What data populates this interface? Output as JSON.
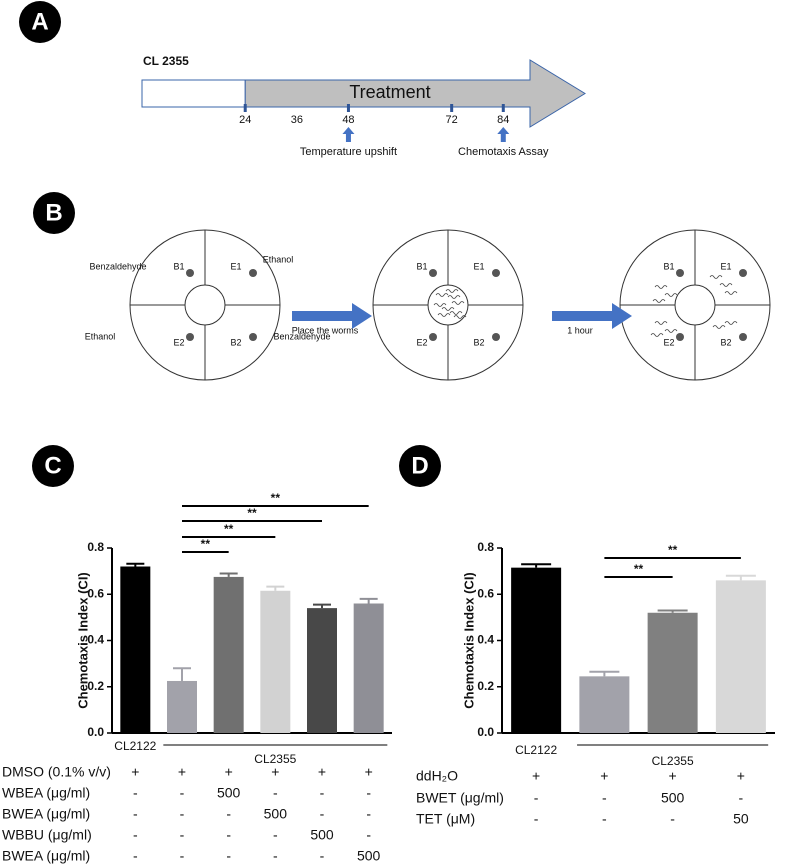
{
  "panels": [
    "A",
    "B",
    "C",
    "D"
  ],
  "timeline": {
    "strain": "CL 2355",
    "label": "Treatment",
    "xlim": [
      0,
      103
    ],
    "xticks": [
      24,
      36,
      48,
      72,
      84
    ],
    "annotations": [
      {
        "at": 48,
        "label": "Temperature upshift"
      },
      {
        "at": 84,
        "label": "Chemotaxis Assay"
      }
    ]
  },
  "assay": {
    "spots": [
      "B1",
      "E1",
      "E2",
      "B2"
    ],
    "odorants": [
      "Benzaldehyde",
      "Ethanol",
      "Ethanol",
      "Benzaldehyde"
    ],
    "steps": [
      "Place the worms",
      "1 hour"
    ]
  },
  "chart_data": [
    {
      "type": "bar",
      "y_label": "Chemotaxis Index (CI)",
      "categories": [
        null,
        null,
        null,
        null,
        null,
        null
      ],
      "values": [
        0.72,
        0.225,
        0.675,
        0.615,
        0.54,
        0.56
      ],
      "errors": [
        0.012,
        0.055,
        0.015,
        0.018,
        0.015,
        0.02
      ],
      "colors": [
        "#000000",
        "#a2a2aa",
        "#707070",
        "#d2d2d2",
        "#484848",
        "#8f8f96"
      ],
      "ylim": [
        0,
        0.8
      ],
      "yticks": [
        {
          "value": 0,
          "label": "0.0"
        },
        0.2,
        0.4,
        0.6,
        0.8
      ],
      "groups": [
        {
          "label": "CL2122",
          "categories": [
            0,
            0
          ]
        },
        {
          "label": "CL2355",
          "categories": [
            1,
            5
          ]
        }
      ],
      "comparisons": [
        {
          "from": 1,
          "to": 2,
          "label": "**"
        },
        {
          "from": 1,
          "to": 3,
          "label": "**"
        },
        {
          "from": 1,
          "to": 4,
          "label": "**"
        },
        {
          "from": 1,
          "to": 5,
          "label": "**"
        }
      ],
      "treatments": [
        {
          "label": "DMSO (0.1% v/v)",
          "cells": [
            "+",
            "+",
            "+",
            "+",
            "+",
            "+"
          ]
        },
        {
          "label": "WBEA (μg/ml)",
          "cells": [
            "-",
            "-",
            "500",
            "-",
            "-",
            "-"
          ]
        },
        {
          "label": "BWEA (μg/ml)",
          "cells": [
            "-",
            "-",
            "-",
            "500",
            "-",
            "-"
          ]
        },
        {
          "label": "WBBU (μg/ml)",
          "cells": [
            "-",
            "-",
            "-",
            "-",
            "500",
            "-"
          ]
        },
        {
          "label": "BWEA (μg/ml)",
          "cells": [
            "-",
            "-",
            "-",
            "-",
            "-",
            "500"
          ]
        }
      ]
    },
    {
      "type": "bar",
      "y_label": "Chemotaxis Index (CI)",
      "categories": [
        null,
        null,
        null,
        null
      ],
      "values": [
        0.715,
        0.245,
        0.52,
        0.66
      ],
      "errors": [
        0.015,
        0.02,
        0.01,
        0.02
      ],
      "colors": [
        "#000000",
        "#a2a2aa",
        "#808080",
        "#d8d8d8"
      ],
      "ylim": [
        0,
        0.8
      ],
      "yticks": [
        {
          "value": 0,
          "label": "0.0"
        },
        0.2,
        0.4,
        0.6,
        0.8
      ],
      "groups": [
        {
          "label": "CL2122",
          "categories": [
            0,
            0
          ]
        },
        {
          "label": "CL2355",
          "categories": [
            1,
            3
          ]
        }
      ],
      "comparisons": [
        {
          "from": 1,
          "to": 2,
          "label": "**"
        },
        {
          "from": 1,
          "to": 3,
          "label": "**"
        }
      ],
      "treatments": [
        {
          "label": "ddH₂O",
          "cells": [
            "+",
            "+",
            "+",
            "+"
          ]
        },
        {
          "label": "BWET (μg/ml)",
          "cells": [
            "-",
            "-",
            "500",
            "-"
          ]
        },
        {
          "label": "TET (μM)",
          "cells": [
            "-",
            "-",
            "-",
            "50"
          ]
        }
      ]
    }
  ]
}
